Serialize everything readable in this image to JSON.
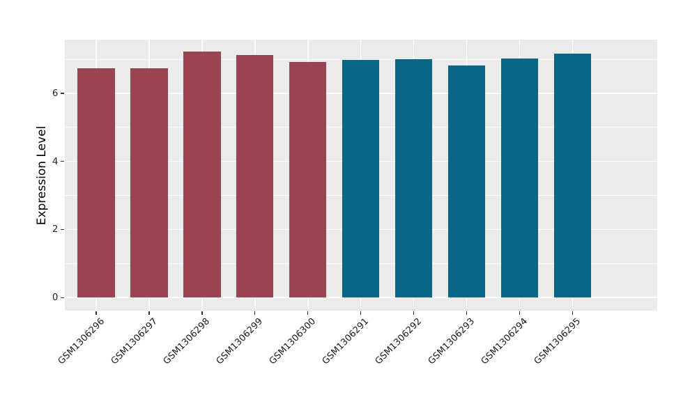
{
  "figure": {
    "background": "#ffffff"
  },
  "chart_data": {
    "type": "bar",
    "title": "",
    "xlabel": "",
    "ylabel": "Expression Level",
    "categories": [
      "GSM1306296",
      "GSM1306297",
      "GSM1306298",
      "GSM1306299",
      "GSM1306300",
      "GSM1306291",
      "GSM1306292",
      "GSM1306293",
      "GSM1306294",
      "GSM1306295"
    ],
    "values": [
      6.73,
      6.73,
      7.22,
      7.13,
      6.92,
      6.98,
      7.0,
      6.81,
      7.03,
      7.16
    ],
    "groups": [
      0,
      0,
      0,
      0,
      0,
      1,
      1,
      1,
      1,
      1
    ],
    "group_colors": [
      "#9A4451",
      "#0B6685"
    ],
    "ylim": [
      0,
      7.6
    ],
    "yticks": [
      0,
      2,
      4,
      6
    ],
    "yticks_minor": [
      1,
      3,
      5,
      7
    ],
    "ytick_labels": [
      "0",
      "2",
      "4",
      "6"
    ],
    "x_tick_rotation_deg": 45,
    "legend": "none",
    "grid": "on",
    "panel_background": "#EBEBEB",
    "grid_major_color": "#FFFFFF",
    "grid_minor_color": "#FFFFFF",
    "tick_mark_color": "#333333",
    "tick_label_color": "#262626",
    "axis_title_color": "#000000"
  }
}
